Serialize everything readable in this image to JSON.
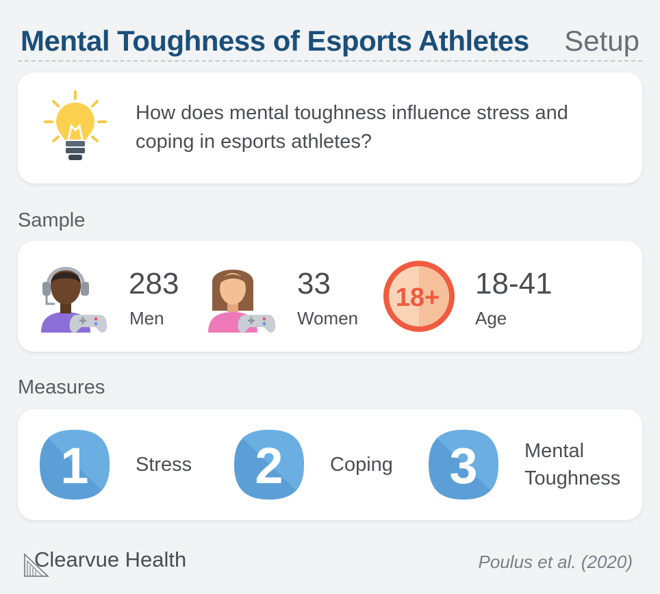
{
  "header": {
    "title": "Mental Toughness of Esports Athletes",
    "setup_label": "Setup"
  },
  "question": {
    "text": "How does mental toughness influence stress and coping in esports athletes?",
    "icon": "lightbulb-icon"
  },
  "sample": {
    "label": "Sample",
    "men": {
      "count": "283",
      "label": "Men",
      "icon": "male-gamer-icon"
    },
    "women": {
      "count": "33",
      "label": "Women",
      "icon": "female-gamer-icon"
    },
    "age": {
      "range": "18-41",
      "label": "Age",
      "badge_text": "18+",
      "icon": "age-18-plus-icon"
    }
  },
  "measures": {
    "label": "Measures",
    "items": [
      {
        "number": "1",
        "label": "Stress"
      },
      {
        "number": "2",
        "label": "Coping"
      },
      {
        "number": "3",
        "label": "Mental Toughness"
      }
    ]
  },
  "footer": {
    "brand": "Clearvue Health",
    "citation": "Poulus et al. (2020)"
  },
  "colors": {
    "title": "#1b4f7a",
    "badge_blue": "#5b9fd6",
    "age_red": "#ef5b3f"
  }
}
